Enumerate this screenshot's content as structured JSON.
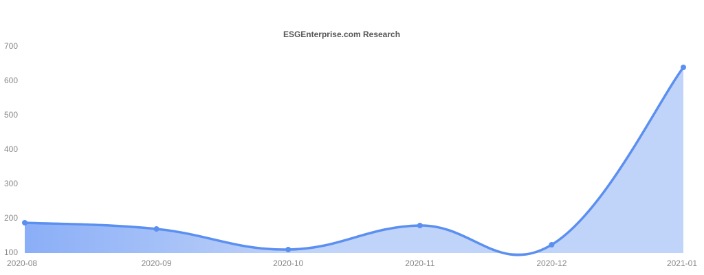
{
  "chart_data": {
    "type": "area",
    "title": "ESGEnterprise.com Research",
    "categories": [
      "2020-08",
      "2020-09",
      "2020-10",
      "2020-11",
      "2020-12",
      "2021-01"
    ],
    "values": [
      188,
      170,
      110,
      180,
      124,
      640
    ],
    "color": "#5b8ff0",
    "fill": "#c0d3f8",
    "ylim": [
      100,
      700
    ],
    "yticks": [
      100,
      200,
      300,
      400,
      500,
      600,
      700
    ],
    "grid": false
  }
}
